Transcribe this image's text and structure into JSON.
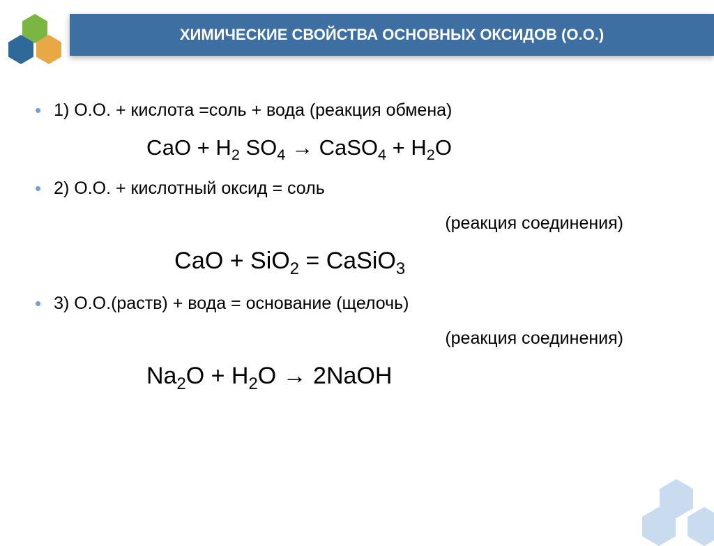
{
  "title": "ХИМИЧЕСКИЕ СВОЙСТВА ОСНОВНЫХ ОКСИДОВ (О.О.)",
  "colors": {
    "title_bg": "#3e6fa3",
    "title_text": "#ffffff",
    "bullet": "#6ea0d2",
    "body_text": "#000000",
    "hex_green": "#7bb642",
    "hex_blue": "#2f6999",
    "hex_orange": "#e8a845",
    "corner_hex": "#c9dcef",
    "background": "#ffffff"
  },
  "typography": {
    "title_fontsize": 22,
    "body_fontsize": 25,
    "formula_fontsize": 31,
    "formula_big_fontsize": 34,
    "font_family": "Arial"
  },
  "lines": {
    "line1": "1) О.О. + кислота =соль + вода (реакция обмена)",
    "formula1_html": "СаО + Н<span class=\"sub\">2</span> SO<span class=\"sub\">4</span> → CaSO<span class=\"sub\">4</span> + H<span class=\"sub\">2</span>O",
    "line2": "2) О.О. + кислотный оксид = соль",
    "line2b": "(реакция соединения)",
    "formula2_html": "СаО + SiO<span class=\"sub\">2</span> = CaSiO<span class=\"sub\">3</span>",
    "line3": "3) О.О.(раств) + вода = основание (щелочь)",
    "line3b": "(реакция соединения)",
    "formula3_html": "Na<span class=\"sub\">2</span>O + H<span class=\"sub\">2</span>O → 2NaOH"
  }
}
